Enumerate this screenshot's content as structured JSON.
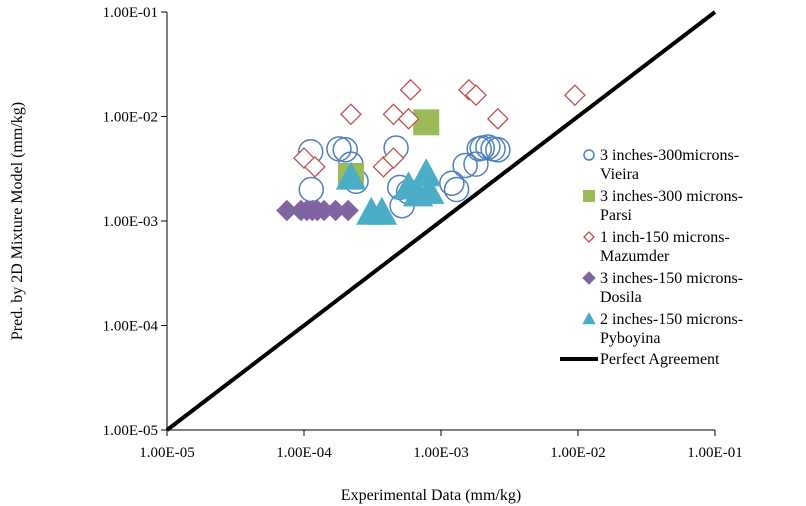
{
  "chart_data": {
    "type": "scatter",
    "title": "",
    "xlabel": "Experimental Data (mm/kg)",
    "ylabel": "Pred. by 2D Mixture Model  (mm/kg)",
    "xscale": "log",
    "yscale": "log",
    "xlim": [
      1e-05,
      0.1
    ],
    "ylim": [
      1e-05,
      0.1
    ],
    "x_ticks": [
      1e-05,
      0.0001,
      0.001,
      0.01,
      0.1
    ],
    "x_tick_labels": [
      "1.00E-05",
      "1.00E-04",
      "1.00E-03",
      "1.00E-02",
      "1.00E-01"
    ],
    "y_ticks": [
      1e-05,
      0.0001,
      0.001,
      0.01,
      0.1
    ],
    "y_tick_labels": [
      "1.00E-05",
      "1.00E-04",
      "1.00E-03",
      "1.00E-02",
      "1.00E-01"
    ],
    "grid": false,
    "legend_position": "right",
    "series": [
      {
        "name": "3 inches-300microns-Vieira",
        "marker": "circle-open",
        "color": "#4f81bd",
        "points": [
          [
            0.000112,
            0.0046
          ],
          [
            0.000113,
            0.002
          ],
          [
            0.00018,
            0.0049
          ],
          [
            0.0002,
            0.0048
          ],
          [
            0.00022,
            0.0035
          ],
          [
            0.00024,
            0.0024
          ],
          [
            0.00047,
            0.005
          ],
          [
            0.0005,
            0.0021
          ],
          [
            0.00052,
            0.0014
          ],
          [
            0.00058,
            0.0019
          ],
          [
            0.0012,
            0.0023
          ],
          [
            0.0013,
            0.002
          ],
          [
            0.0015,
            0.0034
          ],
          [
            0.0018,
            0.0035
          ],
          [
            0.0019,
            0.0049
          ],
          [
            0.002,
            0.005
          ],
          [
            0.0022,
            0.0051
          ],
          [
            0.0024,
            0.0049
          ],
          [
            0.0026,
            0.0048
          ]
        ]
      },
      {
        "name": "3 inches-300 microns-Parsi",
        "marker": "square",
        "color": "#9bbb59",
        "points": [
          [
            0.00078,
            0.0088
          ],
          [
            0.00022,
            0.0027
          ]
        ]
      },
      {
        "name": "1 inch-150 microns-Mazumder",
        "marker": "diamond-open",
        "color": "#c0504d",
        "points": [
          [
            0.0001,
            0.004
          ],
          [
            0.00012,
            0.0033
          ],
          [
            0.00022,
            0.0105
          ],
          [
            0.00038,
            0.0033
          ],
          [
            0.00045,
            0.004
          ],
          [
            0.00045,
            0.0105
          ],
          [
            0.00058,
            0.0095
          ],
          [
            0.0006,
            0.018
          ],
          [
            0.0016,
            0.018
          ],
          [
            0.0018,
            0.016
          ],
          [
            0.0026,
            0.0095
          ],
          [
            0.0095,
            0.016
          ]
        ]
      },
      {
        "name": "3 inches-150 microns-Dosila",
        "marker": "diamond",
        "color": "#8064a2",
        "points": [
          [
            7.5e-05,
            0.00126
          ],
          [
            9.5e-05,
            0.00126
          ],
          [
            0.000105,
            0.00126
          ],
          [
            0.000115,
            0.00126
          ],
          [
            0.000125,
            0.00126
          ],
          [
            0.00014,
            0.00126
          ],
          [
            0.00017,
            0.00126
          ],
          [
            0.00021,
            0.00126
          ]
        ]
      },
      {
        "name": "2 inches-150 microns-Pyboyina",
        "marker": "triangle",
        "color": "#4bacc6",
        "points": [
          [
            0.00022,
            0.0026
          ],
          [
            0.00031,
            0.0012
          ],
          [
            0.00037,
            0.0012
          ],
          [
            0.00058,
            0.0021
          ],
          [
            0.00068,
            0.0018
          ],
          [
            0.00078,
            0.0028
          ],
          [
            0.00082,
            0.0019
          ]
        ]
      }
    ],
    "reference_line": {
      "name": "Perfect Agreement",
      "color": "#000000",
      "points": [
        [
          1e-05,
          1e-05
        ],
        [
          0.1,
          0.1
        ]
      ]
    }
  }
}
